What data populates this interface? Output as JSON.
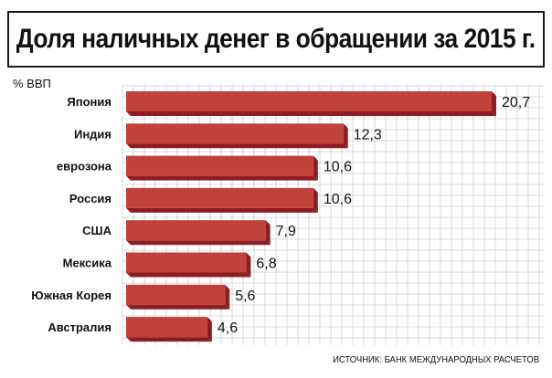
{
  "title": "Доля наличных денег в обращении за 2015 г.",
  "source": "ИСТОЧНИК: БАНК МЕЖДУНАРОДНЫХ РАСЧЕТОВ",
  "colors": {
    "bar_front": "#c0423b",
    "bar_side": "#8e1d22",
    "grid": "#cfcfcf",
    "text": "#111111"
  },
  "chart_data": {
    "type": "bar",
    "orientation": "horizontal",
    "unit_label": "% ВВП",
    "categories": [
      "Япония",
      "Индия",
      "еврозона",
      "Россия",
      "США",
      "Мексика",
      "Южная Корея",
      "Австралия"
    ],
    "values": [
      20.7,
      12.3,
      10.6,
      10.6,
      7.9,
      6.8,
      5.6,
      4.6
    ],
    "value_labels": [
      "20,7",
      "12,3",
      "10,6",
      "10,6",
      "7,9",
      "6,8",
      "5,6",
      "4,6"
    ],
    "xlim": [
      0,
      20.7
    ],
    "grid": true
  }
}
